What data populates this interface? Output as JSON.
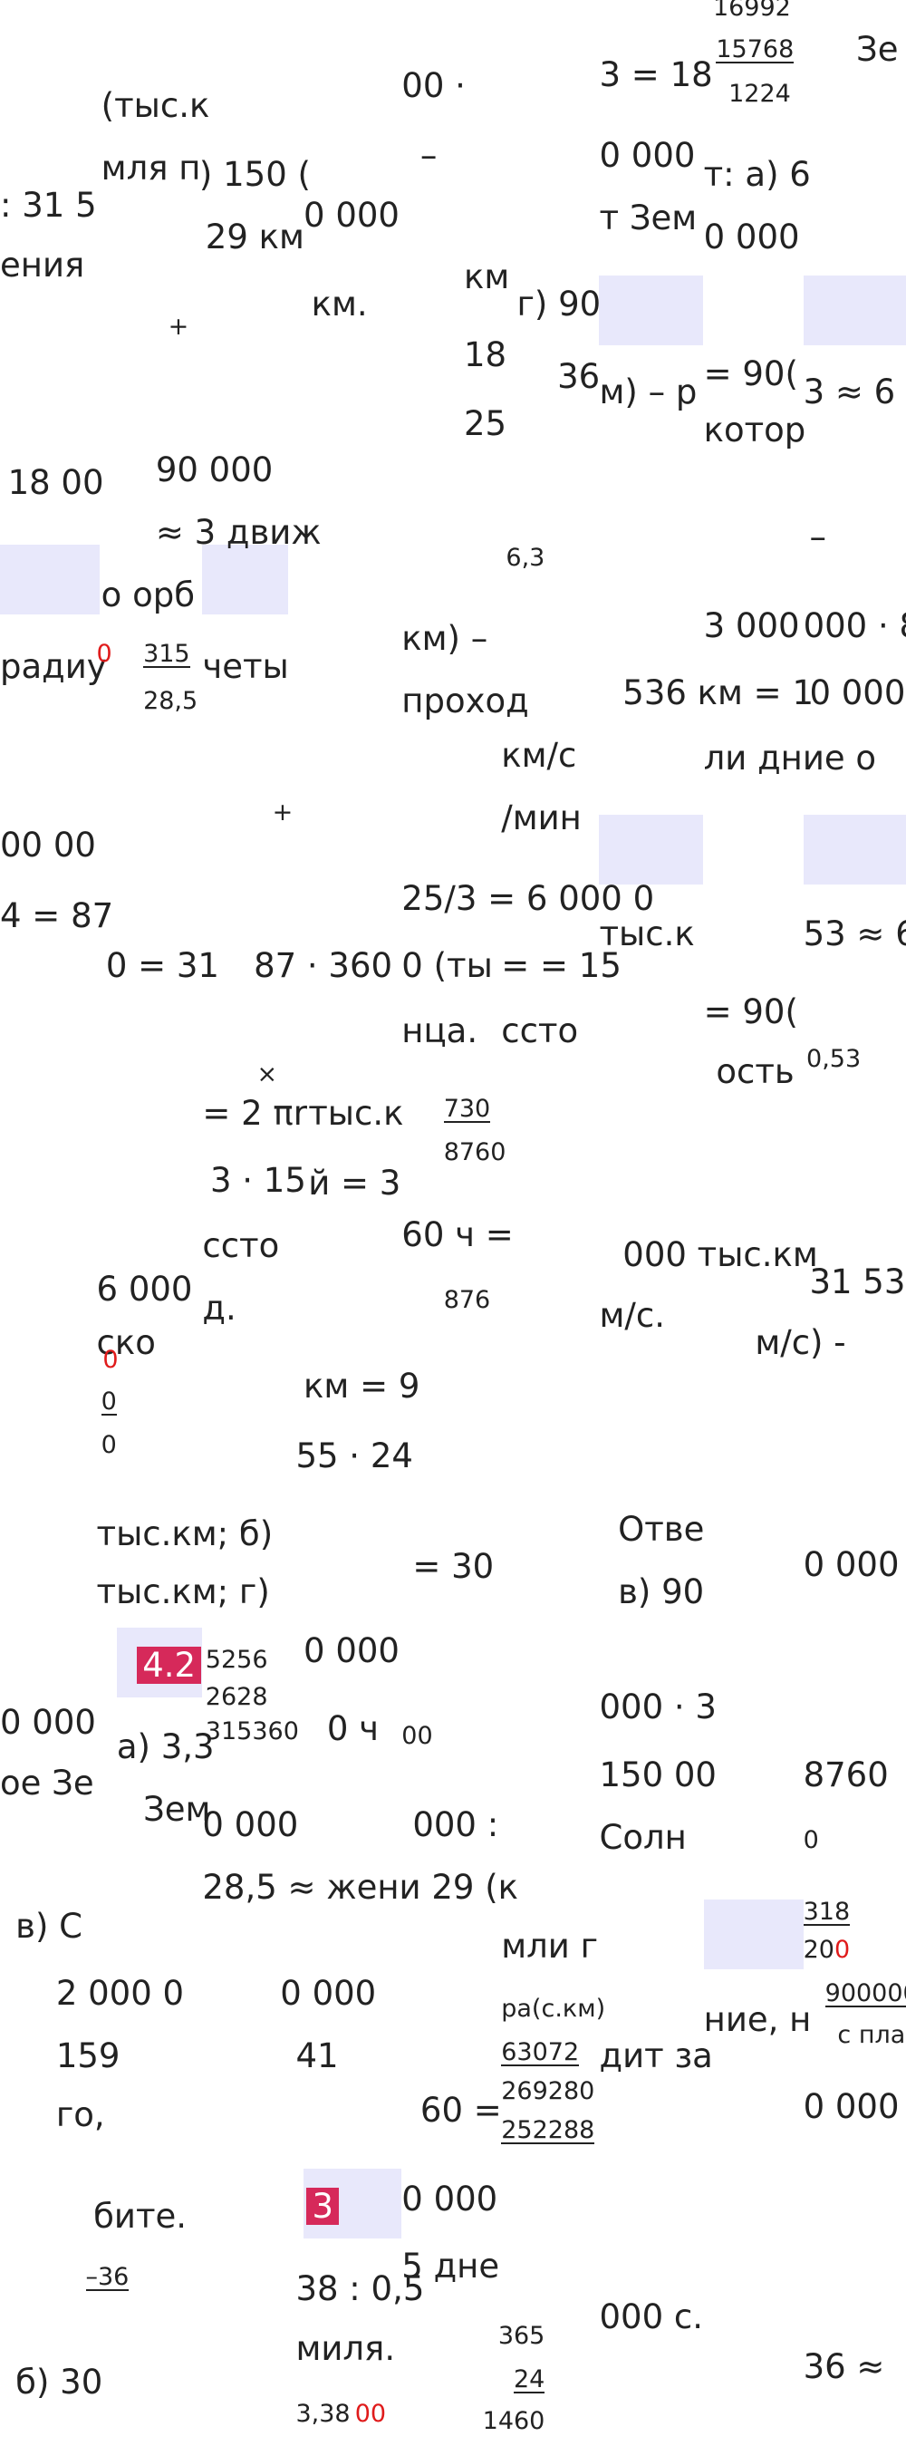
{
  "fragments": [
    "16992",
    "15768",
    "1224",
    "Зе",
    "(тыс.к",
    "00 ·",
    "3 = 18",
    "–",
    "мля п",
    ") 150 (",
    "0 000",
    "т: а) 6",
    ": 31 5",
    "0 000",
    "т Зем",
    "29 км",
    "0 000",
    "ения",
    "км",
    "г) 90",
    "км.",
    "+",
    "18",
    "36",
    "м) – р",
    "= 90(",
    "3 ≈ 6 (",
    "25",
    "котор",
    "18 00",
    "90 000",
    "≈ 3 движ",
    "6,3",
    "о орб",
    "–",
    "3 000",
    "000 · 8",
    "радиу",
    "0",
    "315",
    "28,5",
    "четы",
    "км) –",
    "проход",
    "536 км = 1",
    "0 000",
    "км/с",
    "ли дние о",
    "00 00",
    "+",
    "/мин",
    "4 = 87",
    "25/3 = 6  000 0",
    "тыс.к",
    "53 ≈ 6,",
    "0 = 31",
    "87 · 360",
    "0 (ты",
    "= = 15",
    "= 90(",
    "нца.",
    "ссто",
    "ость",
    "0,53",
    "×",
    "= 2 πr",
    "тыс.к",
    "730",
    "8760",
    "3 · 15",
    "й = 3",
    "ссто",
    "60 ч =",
    "000 тыс.км",
    "31 53",
    "6 000",
    "д.",
    "876",
    "м/с.",
    "ско",
    "м/с) -",
    "0",
    "км = 9",
    "0",
    "0",
    "55 · 24",
    "тыс.км; б)",
    "Отве",
    "0 000 ·",
    "тыс.км; г)",
    "= 30",
    "в) 90",
    "4.2",
    "5256",
    "0 000",
    "2628",
    "315360",
    "0 ч",
    "00",
    "0 000",
    "а) 3,3",
    "000 · 3",
    "ое Зе",
    "150 00",
    "8760",
    "Зем",
    "0 000",
    "000 :",
    "Солн",
    "0",
    "28,5 ≈ жени  29 (к",
    "в) С",
    "мли г",
    "318",
    "20",
    "0",
    "2 000 0",
    "0 000",
    "ра(с.км)",
    "ние, н",
    "900000",
    "с пла",
    "159",
    "41",
    "63072",
    "дит за",
    "го,",
    "60 =",
    "269280",
    "0 000",
    "252288",
    "бите.",
    "3",
    "0 000",
    "–36",
    "5 дне",
    "38 : 0,5",
    "000 с.",
    "365",
    "24",
    "миля.",
    "б) 30",
    "36 ≈",
    "3,38",
    "00",
    "1460"
  ]
}
